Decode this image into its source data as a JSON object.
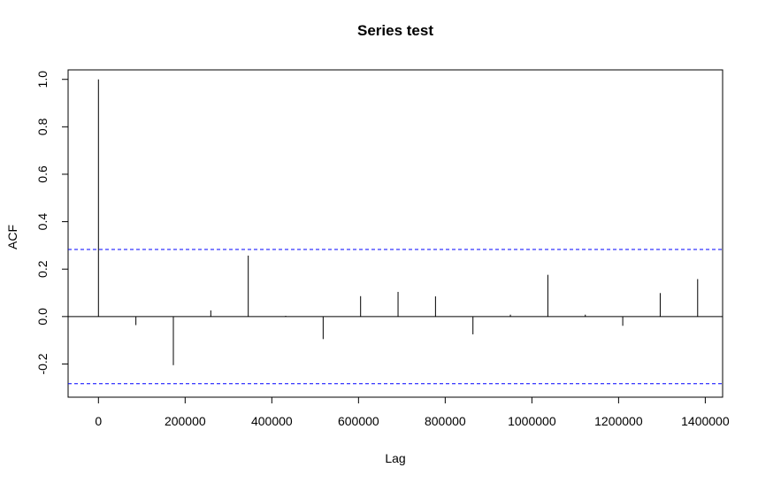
{
  "chart_data": {
    "type": "bar",
    "title": "Series  test",
    "xlabel": "Lag",
    "ylabel": "ACF",
    "xlim": [
      -70000,
      1440000
    ],
    "ylim": [
      -0.34,
      1.04
    ],
    "x_ticks": [
      0,
      200000,
      400000,
      600000,
      800000,
      1000000,
      1200000,
      1400000
    ],
    "x_tick_labels": [
      "0",
      "200000",
      "400000",
      "600000",
      "800000",
      "1000000",
      "1200000",
      "1400000"
    ],
    "y_ticks": [
      -0.2,
      0.0,
      0.2,
      0.4,
      0.6,
      0.8,
      1.0
    ],
    "y_tick_labels": [
      "-0.2",
      "0.0",
      "0.2",
      "0.4",
      "0.6",
      "0.8",
      "1.0"
    ],
    "x": [
      0,
      86400,
      172800,
      259200,
      345600,
      432000,
      518400,
      604800,
      691200,
      777600,
      864000,
      950400,
      1036800,
      1123200,
      1209600,
      1296000,
      1382400
    ],
    "values": [
      1.0,
      -0.036,
      -0.205,
      0.026,
      0.257,
      0.003,
      -0.095,
      0.086,
      0.104,
      0.085,
      -0.075,
      0.008,
      0.176,
      0.008,
      -0.039,
      0.099,
      0.158
    ],
    "confidence_band": 0.283,
    "zero_line": true,
    "grid": false,
    "colors": {
      "bars": "#000000",
      "confidence": "#0000ff",
      "frame": "#000000"
    }
  }
}
